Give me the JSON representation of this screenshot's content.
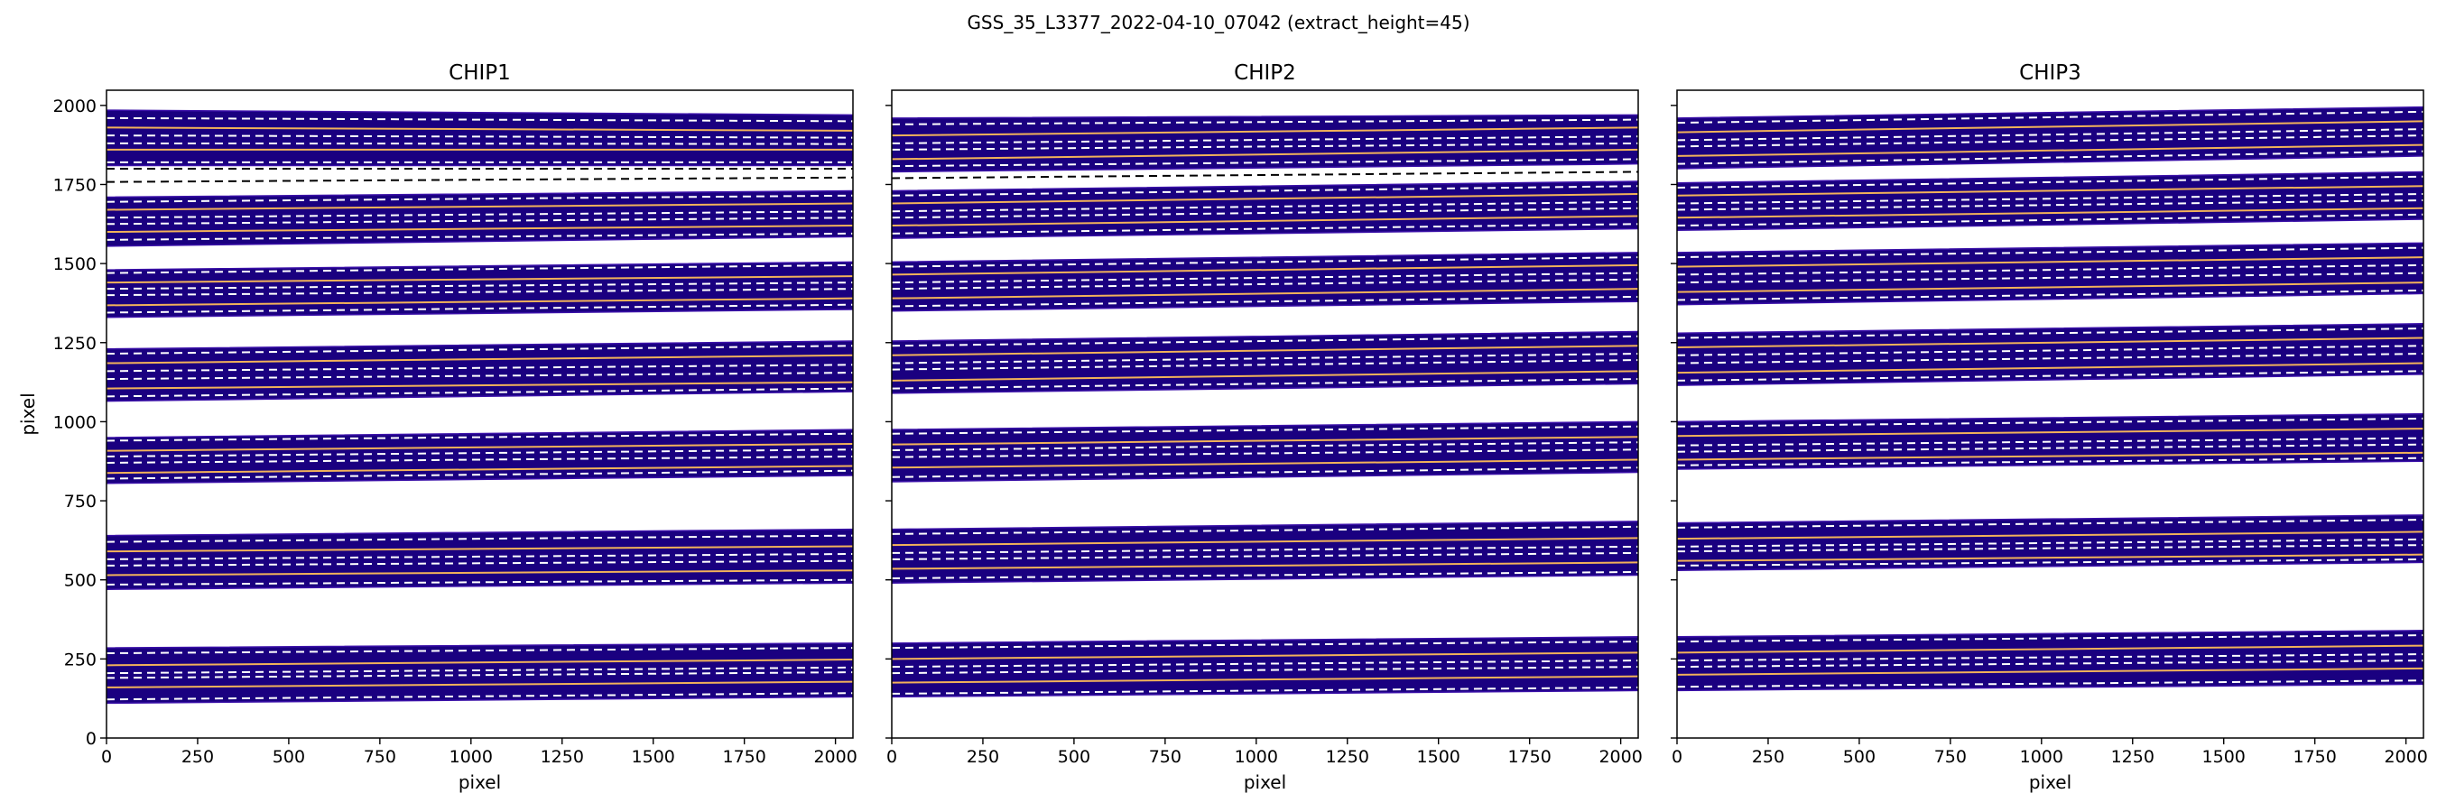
{
  "figure": {
    "suptitle": "GSS_35_L3377_2022-04-10_07042  (extract_height=45)"
  },
  "colors": {
    "trace_fill": "#1a0080",
    "trace_fill_edge": "#3a10a8",
    "center_line": "#f2b25a",
    "hot_pixel": "#b42a9a",
    "extract_edge_dash": "#ffffff",
    "gap_dash": "#000000",
    "axes_edge": "#000000"
  },
  "chart_data": [
    {
      "type": "area",
      "title": "CHIP1",
      "xlabel": "pixel",
      "ylabel": "pixel",
      "xlim": [
        0,
        2048
      ],
      "ylim": [
        0,
        2048
      ],
      "xticks": [
        0,
        250,
        500,
        750,
        1000,
        1250,
        1500,
        1750,
        2000
      ],
      "yticks": [
        0,
        250,
        500,
        750,
        1000,
        1250,
        1500,
        1750,
        2000
      ],
      "ytick_labels_shown": true,
      "orders": [
        {
          "lower": [
            110,
            130
          ],
          "upper": [
            285,
            300
          ],
          "centers": [
            [
              160,
              178
            ],
            [
              230,
              248
            ]
          ],
          "dashes": [
            [
              122,
              142
            ],
            [
              190,
              208
            ],
            [
              205,
              223
            ],
            [
              268,
              285
            ]
          ]
        },
        {
          "lower": [
            470,
            490
          ],
          "upper": [
            640,
            660
          ],
          "centers": [
            [
              515,
              530
            ],
            [
              590,
              606
            ]
          ],
          "dashes": [
            [
              485,
              500
            ],
            [
              545,
              560
            ],
            [
              565,
              582
            ],
            [
              620,
              640
            ]
          ]
        },
        {
          "lower": [
            805,
            830
          ],
          "upper": [
            950,
            975
          ],
          "centers": [
            [
              838,
              860
            ],
            [
              908,
              930
            ]
          ],
          "dashes": [
            [
              820,
              845
            ],
            [
              870,
              890
            ],
            [
              890,
              912
            ],
            [
              940,
              962
            ]
          ]
        },
        {
          "lower": [
            1065,
            1095
          ],
          "upper": [
            1230,
            1255
          ],
          "centers": [
            [
              1105,
              1125
            ],
            [
              1185,
              1210
            ]
          ],
          "dashes": [
            [
              1080,
              1105
            ],
            [
              1135,
              1155
            ],
            [
              1160,
              1180
            ],
            [
              1215,
              1240
            ]
          ]
        },
        {
          "lower": [
            1330,
            1355
          ],
          "upper": [
            1480,
            1505
          ],
          "centers": [
            [
              1368,
              1390
            ],
            [
              1440,
              1460
            ]
          ],
          "dashes": [
            [
              1345,
              1370
            ],
            [
              1400,
              1420
            ],
            [
              1420,
              1440
            ],
            [
              1470,
              1495
            ]
          ]
        },
        {
          "lower": [
            1555,
            1585
          ],
          "upper": [
            1710,
            1730
          ],
          "centers": [
            [
              1600,
              1620
            ],
            [
              1670,
              1690
            ]
          ],
          "dashes": [
            [
              1575,
              1595
            ],
            [
              1625,
              1645
            ],
            [
              1645,
              1665
            ],
            [
              1695,
              1715
            ]
          ]
        },
        {
          "lower": [
            1810,
            1810
          ],
          "upper": [
            1985,
            1970
          ],
          "centers": [
            [
              1860,
              1860
            ],
            [
              1930,
              1920
            ]
          ],
          "dashes": [
            [
              1820,
              1820
            ],
            [
              1880,
              1878
            ],
            [
              1905,
              1898
            ],
            [
              1960,
              1950
            ]
          ]
        }
      ],
      "gap_dashes": [
        [
          1758,
          1772
        ],
        [
          1800,
          1800
        ]
      ]
    },
    {
      "type": "area",
      "title": "CHIP2",
      "xlabel": "pixel",
      "ylabel": "",
      "xlim": [
        0,
        2048
      ],
      "ylim": [
        0,
        2048
      ],
      "xticks": [
        0,
        250,
        500,
        750,
        1000,
        1250,
        1500,
        1750,
        2000
      ],
      "yticks": [
        0,
        250,
        500,
        750,
        1000,
        1250,
        1500,
        1750,
        2000
      ],
      "ytick_labels_shown": false,
      "orders": [
        {
          "lower": [
            130,
            150
          ],
          "upper": [
            300,
            320
          ],
          "centers": [
            [
              175,
              195
            ],
            [
              250,
              270
            ]
          ],
          "dashes": [
            [
              140,
              160
            ],
            [
              205,
              225
            ],
            [
              225,
              245
            ],
            [
              285,
              305
            ]
          ]
        },
        {
          "lower": [
            490,
            515
          ],
          "upper": [
            660,
            685
          ],
          "centers": [
            [
              535,
              555
            ],
            [
              610,
              632
            ]
          ],
          "dashes": [
            [
              505,
              525
            ],
            [
              565,
              585
            ],
            [
              585,
              605
            ],
            [
              645,
              668
            ]
          ]
        },
        {
          "lower": [
            810,
            840
          ],
          "upper": [
            975,
            1000
          ],
          "centers": [
            [
              855,
              880
            ],
            [
              928,
              952
            ]
          ],
          "dashes": [
            [
              825,
              855
            ],
            [
              888,
              912
            ],
            [
              910,
              935
            ],
            [
              962,
              985
            ]
          ]
        },
        {
          "lower": [
            1090,
            1120
          ],
          "upper": [
            1255,
            1285
          ],
          "centers": [
            [
              1130,
              1160
            ],
            [
              1210,
              1240
            ]
          ],
          "dashes": [
            [
              1105,
              1135
            ],
            [
              1165,
              1195
            ],
            [
              1185,
              1215
            ],
            [
              1240,
              1270
            ]
          ]
        },
        {
          "lower": [
            1350,
            1380
          ],
          "upper": [
            1505,
            1535
          ],
          "centers": [
            [
              1390,
              1420
            ],
            [
              1465,
              1495
            ]
          ],
          "dashes": [
            [
              1365,
              1395
            ],
            [
              1420,
              1450
            ],
            [
              1440,
              1470
            ],
            [
              1490,
              1520
            ]
          ]
        },
        {
          "lower": [
            1580,
            1610
          ],
          "upper": [
            1730,
            1760
          ],
          "centers": [
            [
              1620,
              1650
            ],
            [
              1690,
              1720
            ]
          ],
          "dashes": [
            [
              1595,
              1625
            ],
            [
              1645,
              1675
            ],
            [
              1665,
              1695
            ],
            [
              1715,
              1745
            ]
          ]
        },
        {
          "lower": [
            1790,
            1815
          ],
          "upper": [
            1960,
            1970
          ],
          "centers": [
            [
              1830,
              1860
            ],
            [
              1905,
              1930
            ]
          ],
          "dashes": [
            [
              1808,
              1830
            ],
            [
              1860,
              1880
            ],
            [
              1880,
              1902
            ],
            [
              1940,
              1955
            ]
          ]
        }
      ],
      "gap_dashes": [
        [
          1770,
          1790
        ]
      ]
    },
    {
      "type": "area",
      "title": "CHIP3",
      "xlabel": "pixel",
      "ylabel": "",
      "xlim": [
        0,
        2048
      ],
      "ylim": [
        0,
        2048
      ],
      "xticks": [
        0,
        250,
        500,
        750,
        1000,
        1250,
        1500,
        1750,
        2000
      ],
      "yticks": [
        0,
        250,
        500,
        750,
        1000,
        1250,
        1500,
        1750,
        2000
      ],
      "ytick_labels_shown": false,
      "orders": [
        {
          "lower": [
            150,
            170
          ],
          "upper": [
            320,
            340
          ],
          "centers": [
            [
              200,
              220
            ],
            [
              270,
              292
            ]
          ],
          "dashes": [
            [
              162,
              182
            ],
            [
              225,
              245
            ],
            [
              245,
              265
            ],
            [
              305,
              325
            ]
          ]
        },
        {
          "lower": [
            530,
            555
          ],
          "upper": [
            680,
            705
          ],
          "centers": [
            [
              560,
              580
            ],
            [
              630,
              652
            ]
          ],
          "dashes": [
            [
              545,
              565
            ],
            [
              590,
              610
            ],
            [
              605,
              628
            ],
            [
              665,
              690
            ]
          ]
        },
        {
          "lower": [
            850,
            875
          ],
          "upper": [
            1000,
            1025
          ],
          "centers": [
            [
              880,
              902
            ],
            [
              955,
              978
            ]
          ],
          "dashes": [
            [
              862,
              885
            ],
            [
              905,
              928
            ],
            [
              925,
              948
            ],
            [
              985,
              1010
            ]
          ]
        },
        {
          "lower": [
            1115,
            1150
          ],
          "upper": [
            1280,
            1310
          ],
          "centers": [
            [
              1155,
              1185
            ],
            [
              1235,
              1265
            ]
          ],
          "dashes": [
            [
              1130,
              1160
            ],
            [
              1185,
              1215
            ],
            [
              1210,
              1240
            ],
            [
              1265,
              1295
            ]
          ]
        },
        {
          "lower": [
            1370,
            1405
          ],
          "upper": [
            1535,
            1565
          ],
          "centers": [
            [
              1410,
              1440
            ],
            [
              1490,
              1520
            ]
          ],
          "dashes": [
            [
              1385,
              1415
            ],
            [
              1440,
              1470
            ],
            [
              1465,
              1495
            ],
            [
              1520,
              1550
            ]
          ]
        },
        {
          "lower": [
            1605,
            1640
          ],
          "upper": [
            1755,
            1790
          ],
          "centers": [
            [
              1645,
              1675
            ],
            [
              1715,
              1745
            ]
          ],
          "dashes": [
            [
              1620,
              1655
            ],
            [
              1670,
              1700
            ],
            [
              1690,
              1720
            ],
            [
              1740,
              1775
            ]
          ]
        },
        {
          "lower": [
            1800,
            1840
          ],
          "upper": [
            1960,
            1995
          ],
          "centers": [
            [
              1840,
              1875
            ],
            [
              1915,
              1950
            ]
          ],
          "dashes": [
            [
              1815,
              1855
            ],
            [
              1870,
              1905
            ],
            [
              1890,
              1925
            ],
            [
              1945,
              1980
            ]
          ]
        }
      ],
      "gap_dashes": []
    }
  ]
}
